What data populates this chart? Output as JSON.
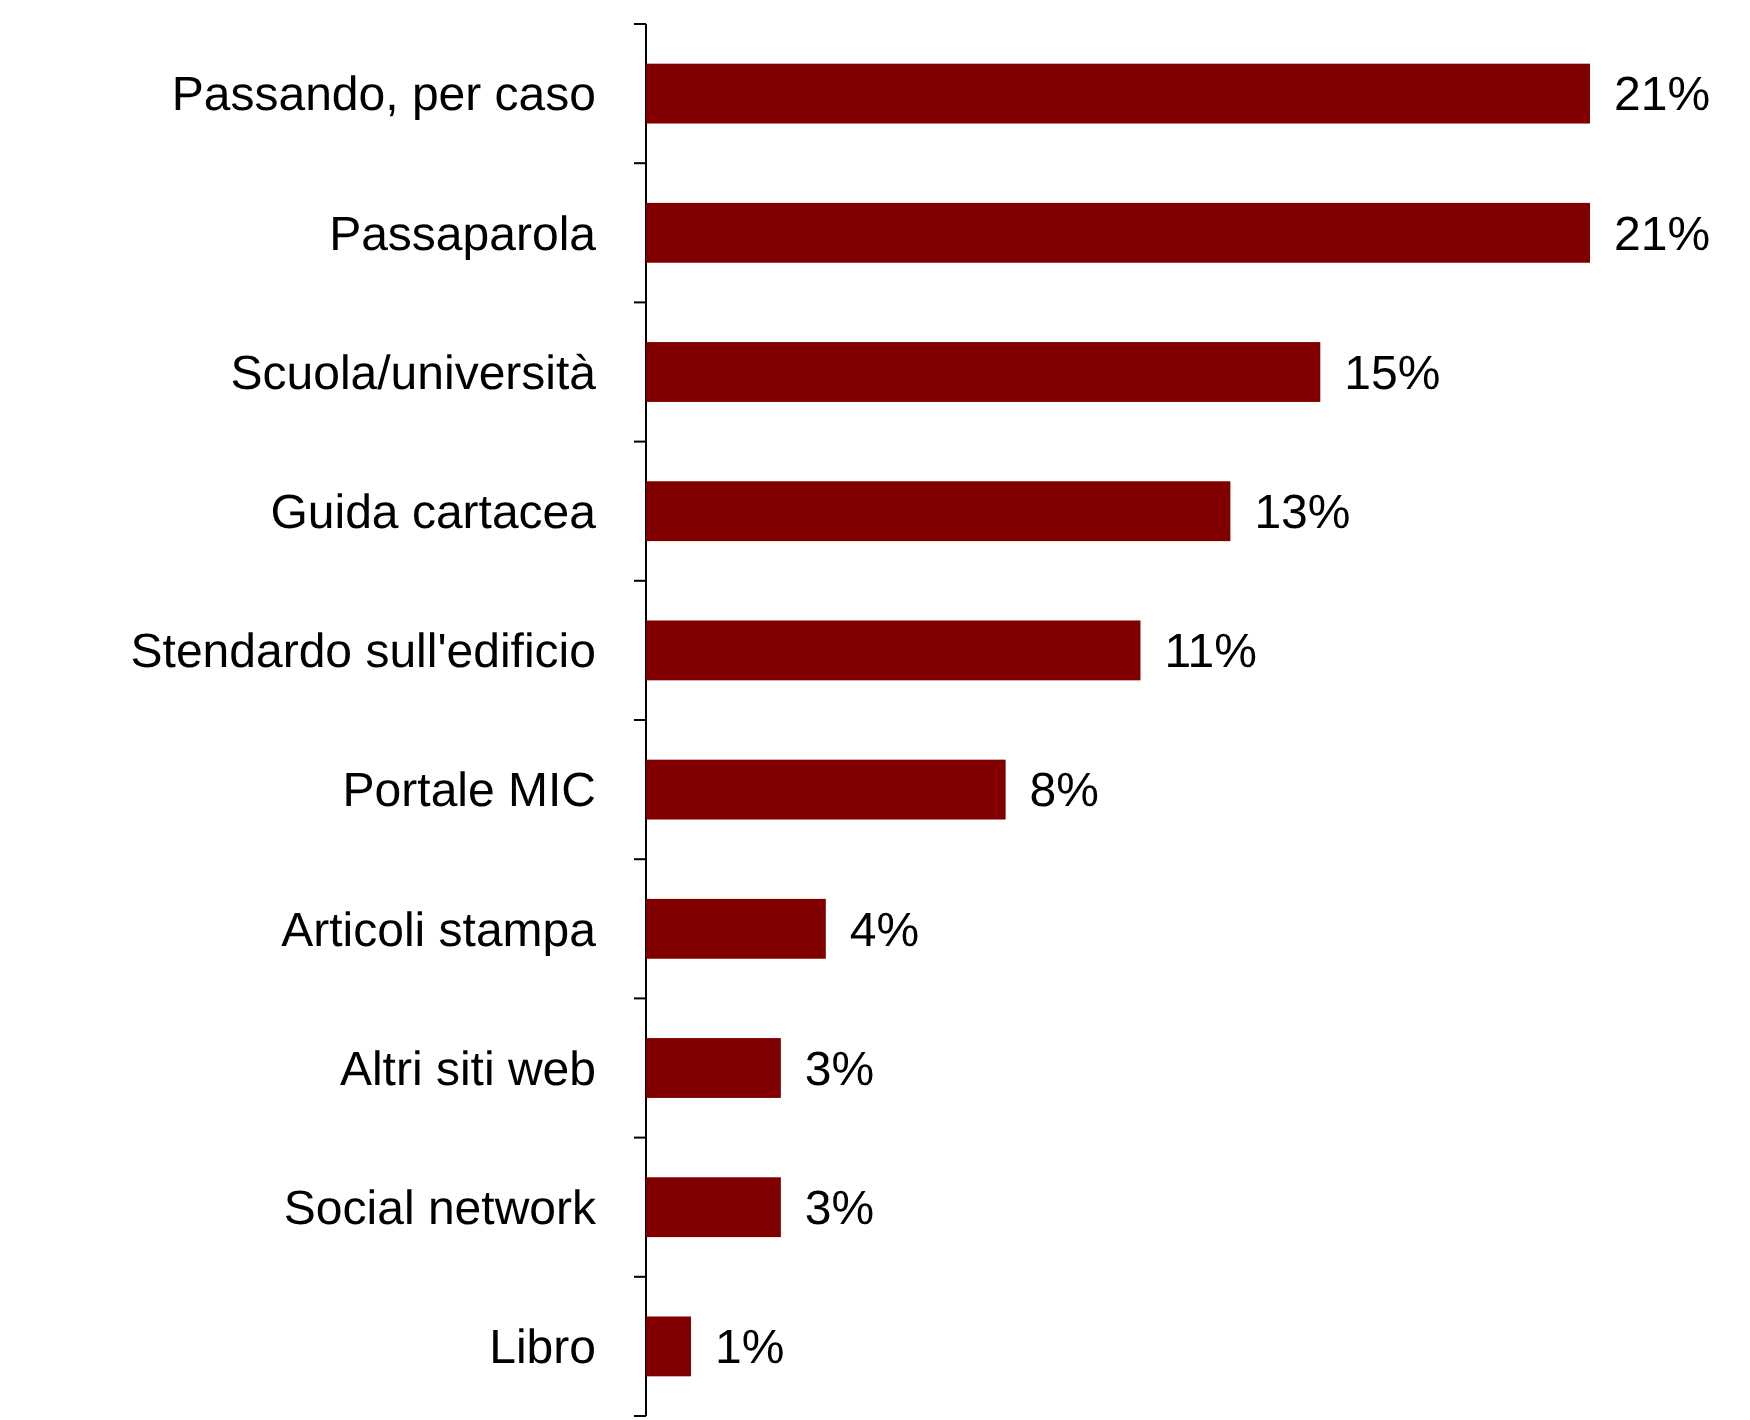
{
  "chart_data": {
    "type": "bar",
    "orientation": "horizontal",
    "categories": [
      "Passando, per caso",
      "Passaparola",
      "Scuola/università",
      "Guida cartacea",
      "Stendardo sull'edificio",
      "Portale MIC",
      "Articoli stampa",
      "Altri siti web",
      "Social network",
      "Libro"
    ],
    "values": [
      21,
      21,
      15,
      13,
      11,
      8,
      4,
      3,
      3,
      1
    ],
    "value_labels": [
      "21%",
      "21%",
      "15%",
      "13%",
      "11%",
      "8%",
      "4%",
      "3%",
      "3%",
      "1%"
    ],
    "color": "#800000"
  }
}
